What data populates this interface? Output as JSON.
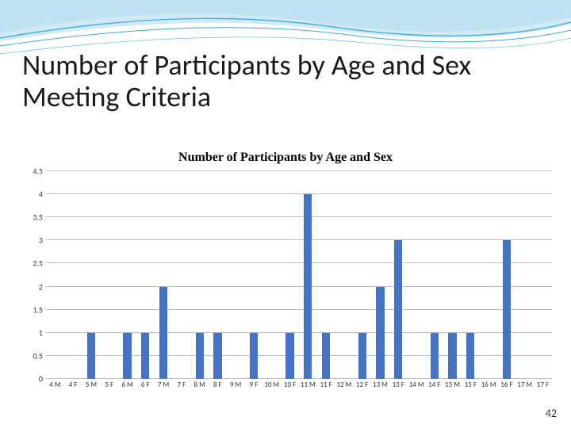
{
  "slide": {
    "title": "Number of Participants by Age and Sex Meeting Criteria",
    "title_fontsize": 36,
    "title_color": "#1a1a1a",
    "page_number": "42",
    "page_number_fontsize": 14,
    "page_number_color": "#333333"
  },
  "wave": {
    "stroke_color": "#3fa9d6",
    "fill_light": "#d9eef8",
    "fill_medium": "#a8d8ec",
    "fill_white": "#ffffff"
  },
  "chart": {
    "type": "bar",
    "title": "Number of Participants by Age and Sex",
    "title_fontsize": 16,
    "title_fontweight": "bold",
    "categories": [
      "4 M",
      "4 F",
      "5 M",
      "5 F",
      "6 M",
      "6 F",
      "7 M",
      "7 F",
      "8 M",
      "8 F",
      "9 M",
      "9 F",
      "10 M",
      "10 F",
      "11 M",
      "11 F",
      "12 M",
      "12 F",
      "13 M",
      "13 F",
      "14 M",
      "14 F",
      "15 M",
      "15 F",
      "16 M",
      "16 F",
      "17 M",
      "17 F"
    ],
    "values": [
      0,
      0,
      1,
      0,
      1,
      1,
      2,
      0,
      1,
      1,
      0,
      1,
      0,
      1,
      4,
      1,
      0,
      1,
      2,
      3,
      0,
      1,
      1,
      1,
      0,
      3,
      0,
      0
    ],
    "ylim": [
      0,
      4.5
    ],
    "ytick_step": 0.5,
    "bar_color": "#4472c4",
    "bar_width_ratio": 0.45,
    "grid_color": "#bfbfbf",
    "background_color": "#ffffff",
    "axis_fontsize": 10,
    "xlabel_fontsize": 9,
    "axis_color": "#333333"
  }
}
